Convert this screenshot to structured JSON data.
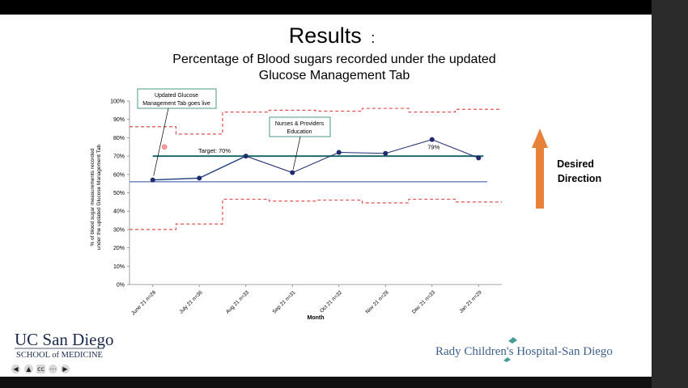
{
  "slide": {
    "title": "Results",
    "title_colon": ":",
    "subtitle_line1": "Percentage of Blood sugars recorded under the updated",
    "subtitle_line2": "Glucose Management Tab"
  },
  "logos": {
    "ucsd_line1": "UC San Diego",
    "ucsd_line2": "SCHOOL of MEDICINE",
    "rady": "Rady Children's Hospital-San Diego"
  },
  "desired_direction": {
    "line1": "Desired",
    "line2": "Direction",
    "color": "#e8823a"
  },
  "chart_data": {
    "type": "line",
    "categories": [
      "June 21 n=28",
      "July 21 n=36",
      "Aug 21 n=33",
      "Sep 21 n=31",
      "Oct 21 n=32",
      "Nov 21 n=28",
      "Dec 21 n=33",
      "Jan 21 n=29"
    ],
    "series": [
      {
        "values": [
          57,
          58,
          70,
          61,
          72,
          71.5,
          79,
          69
        ],
        "color": "#1f2a6e"
      }
    ],
    "extra_points": [
      {
        "x": 0.25,
        "y": 75,
        "color": "#f4a0a0"
      }
    ],
    "centerline": 56,
    "centerline_color": "#2f4aa8",
    "shift_line": {
      "from": 0,
      "to": 2,
      "values": [
        57,
        58,
        70
      ],
      "color": "#6ea8c8"
    },
    "target": {
      "value": 70,
      "label": "Target: 70%",
      "color": "#1f6b6b"
    },
    "ucl": [
      86,
      82,
      94,
      95,
      94.5,
      96,
      94,
      95.5
    ],
    "lcl": [
      30,
      33,
      46.5,
      45.5,
      46,
      44.5,
      46.5,
      45
    ],
    "limit_color": "#e05050",
    "xlabel": "Month",
    "ylabel_line1": "% of blood sugar measurements recorded",
    "ylabel_line2": "under the updated Glucose Management Tab",
    "ylim": [
      0,
      100
    ],
    "yticks": [
      "0%",
      "10%",
      "20%",
      "30%",
      "40%",
      "50%",
      "60%",
      "70%",
      "80%",
      "90%",
      "100%"
    ],
    "data_labels": [
      {
        "index": 6,
        "text": "79%"
      }
    ],
    "annotations": [
      {
        "text_line1": "Updated Glucose",
        "text_line2": "Management Tab goes live",
        "points_to": 0
      },
      {
        "text_line1": "Nurses & Providers",
        "text_line2": "Education",
        "points_to": 3
      }
    ]
  }
}
